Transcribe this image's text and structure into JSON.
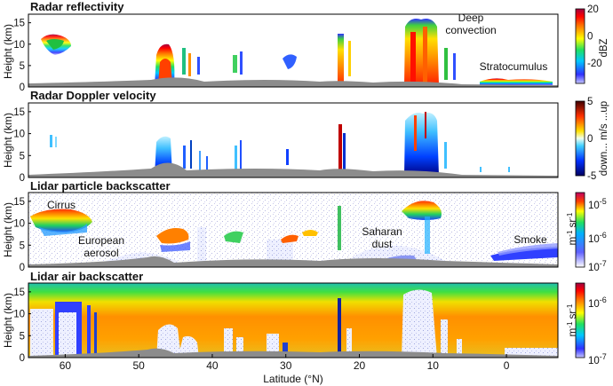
{
  "chart_data": [
    {
      "type": "heatmap",
      "title": "Radar reflectivity",
      "ylabel": "Height (km)",
      "ylim": [
        0,
        17
      ],
      "yticks": [
        "0",
        "5",
        "10",
        "15"
      ],
      "colorbar": {
        "label": "dBZ",
        "range": [
          -35,
          20
        ],
        "ticks": [
          "20",
          "0",
          "-20"
        ],
        "colormap": "jet"
      },
      "annotations": [
        "Deep convection",
        "Stratocumulus"
      ],
      "features": [
        {
          "lat_min": 60,
          "lat_max": 64,
          "z_min": 7,
          "z_max": 12,
          "level": 0.7
        },
        {
          "lat_min": 44,
          "lat_max": 47,
          "z_min": 0,
          "z_max": 9,
          "level": 0.9
        },
        {
          "lat_min": 21,
          "lat_max": 23,
          "z_min": 0,
          "z_max": 12,
          "level": 0.8
        },
        {
          "lat_min": 8.5,
          "lat_max": 14,
          "z_min": 0,
          "z_max": 16,
          "level": 1.0
        },
        {
          "lat_min": -7,
          "lat_max": -3,
          "z_min": 0,
          "z_max": 2,
          "level": 0.6
        }
      ]
    },
    {
      "type": "heatmap",
      "title": "Radar Doppler velocity",
      "ylabel": "Height (km)",
      "ylim": [
        0,
        17
      ],
      "yticks": [
        "0",
        "5",
        "10",
        "15"
      ],
      "colorbar": {
        "label": "down... m/s ...up",
        "range": [
          -5,
          5
        ],
        "ticks": [
          "5",
          "0",
          "-5"
        ],
        "colormap": "diverging"
      },
      "features": [
        {
          "lat_min": 44,
          "lat_max": 47,
          "z_min": 0,
          "z_max": 8,
          "level": 0.35
        },
        {
          "lat_min": 8.5,
          "lat_max": 14,
          "z_min": 0,
          "z_max": 15,
          "level": 0.2
        },
        {
          "lat_min": 21,
          "lat_max": 23,
          "z_min": 0,
          "z_max": 12,
          "level": 0.4
        }
      ]
    },
    {
      "type": "heatmap",
      "title": "Lidar particle backscatter",
      "ylabel": "Height (km)",
      "ylim": [
        0,
        17
      ],
      "yticks": [
        "0",
        "5",
        "10",
        "15"
      ],
      "colorbar": {
        "label": "m-1 sr-1",
        "range": [
          "10-7",
          "10-5"
        ],
        "ticks": [
          "10-5",
          "10-6",
          "10-7"
        ],
        "colormap": "jet"
      },
      "annotations": [
        "Cirrus",
        "European aerosol",
        "Saharan dust",
        "Smoke"
      ],
      "features": [
        {
          "name": "Cirrus",
          "lat_min": 56,
          "lat_max": 64.5,
          "z_min": 9,
          "z_max": 13
        },
        {
          "name": "European aerosol",
          "lat_min": 48,
          "lat_max": 60,
          "z_min": 0,
          "z_max": 3
        },
        {
          "name": "Saharan dust",
          "lat_min": 10,
          "lat_max": 22,
          "z_min": 0,
          "z_max": 5
        },
        {
          "name": "Smoke",
          "lat_min": -7,
          "lat_max": 2,
          "z_min": 2,
          "z_max": 4
        }
      ]
    },
    {
      "type": "heatmap",
      "title": "Lidar air backscatter",
      "ylabel": "Height (km)",
      "ylim": [
        0,
        17
      ],
      "yticks": [
        "0",
        "5",
        "10",
        "15"
      ],
      "colorbar": {
        "label": "m-1 sr-1",
        "range": [
          "10-7",
          "10-6"
        ],
        "ticks": [
          "10-6",
          "10-7"
        ],
        "colormap": "jet"
      },
      "xlabel": "Latitude (°N)",
      "xlim": [
        65,
        -7
      ],
      "xticks": [
        "60",
        "50",
        "40",
        "30",
        "20",
        "10",
        "0"
      ]
    }
  ],
  "strings": {
    "p1_title": "Radar reflectivity",
    "p2_title": "Radar Doppler velocity",
    "p3_title": "Lidar particle backscatter",
    "p4_title": "Lidar air backscatter",
    "ylabel": "Height (km)",
    "xlabel": "Latitude (°N)",
    "ann_deep1": "Deep",
    "ann_deep2": "convection",
    "ann_strato": "Stratocumulus",
    "ann_cirrus": "Cirrus",
    "ann_euro1": "European",
    "ann_euro2": "aerosol",
    "ann_sahara1": "Saharan",
    "ann_sahara2": "dust",
    "ann_smoke": "Smoke",
    "cb1_label": "dBZ",
    "cb2_label": "down... m/s ...up",
    "cb34_unit_m": "m",
    "cb34_unit_exp1": "-1",
    "cb34_unit_sr": " sr",
    "cb34_unit_exp2": "-1",
    "cb_ten": "10",
    "cb_exp5": "-5",
    "cb_exp6": "-6",
    "cb_exp7": "-7"
  },
  "colors": {
    "jet": [
      "#00008f",
      "#0000ff",
      "#00ffff",
      "#7fff00",
      "#ffff00",
      "#ff7f00",
      "#ff0000",
      "#7f0000"
    ],
    "velocity": [
      "#000080",
      "#0040ff",
      "#40c0ff",
      "#e0ffff",
      "#ffff80",
      "#ff8000",
      "#c00000",
      "#400000"
    ],
    "ground": "#8c8c8c",
    "background": "#ffffff"
  }
}
